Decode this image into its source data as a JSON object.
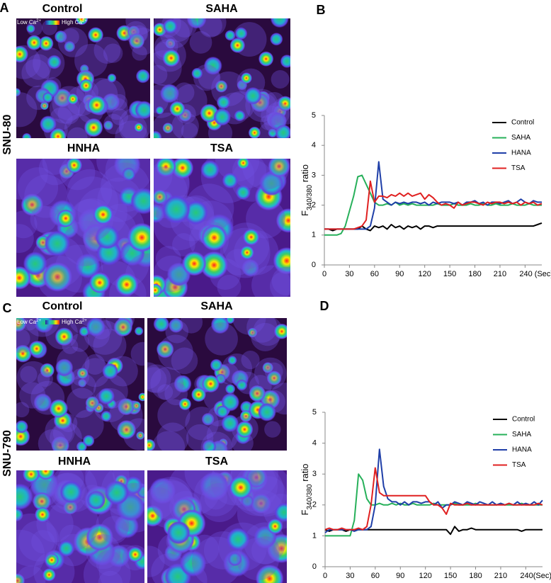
{
  "panels": [
    {
      "letter": "A",
      "cell_line": "SNU-80",
      "images": [
        "Control",
        "SAHA",
        "HNHA",
        "TSA"
      ],
      "scale_low": [
        "Low Ca",
        "2+"
      ],
      "scale_high": [
        "High Ca",
        "2+"
      ]
    },
    {
      "letter": "C",
      "cell_line": "SNU-790",
      "images": [
        "Control",
        "SAHA",
        "HNHA",
        "TSA"
      ],
      "scale_low": [
        "Low Ca",
        "2+"
      ],
      "scale_high": [
        "High Ca",
        "2+"
      ]
    }
  ],
  "chart_data": [
    {
      "type": "line",
      "panel_label": "B",
      "ylabel": [
        "F",
        "340/380",
        " ratio"
      ],
      "xlim": [
        0,
        260
      ],
      "ylim": [
        0,
        5
      ],
      "xticks": [
        0,
        30,
        60,
        90,
        120,
        150,
        180,
        210,
        {
          "value": 240,
          "label": "240 (Sec)"
        }
      ],
      "yticks": [
        0,
        1,
        2,
        3,
        4,
        5
      ],
      "legend": "upper right",
      "x": [
        0,
        5,
        10,
        15,
        20,
        25,
        30,
        35,
        40,
        45,
        50,
        55,
        60,
        65,
        70,
        75,
        80,
        85,
        90,
        95,
        100,
        105,
        110,
        115,
        120,
        125,
        130,
        135,
        140,
        145,
        150,
        155,
        160,
        165,
        170,
        175,
        180,
        185,
        190,
        195,
        200,
        205,
        210,
        215,
        220,
        225,
        230,
        235,
        240,
        245,
        250,
        255,
        260
      ],
      "series": [
        {
          "name": "Control",
          "color": "#000000",
          "values": [
            1.2,
            1.2,
            1.15,
            1.2,
            1.2,
            1.2,
            1.2,
            1.2,
            1.2,
            1.3,
            1.2,
            1.15,
            1.3,
            1.25,
            1.3,
            1.2,
            1.35,
            1.25,
            1.3,
            1.2,
            1.3,
            1.25,
            1.3,
            1.2,
            1.3,
            1.3,
            1.25,
            1.3,
            1.3,
            1.3,
            1.3,
            1.3,
            1.3,
            1.3,
            1.3,
            1.3,
            1.3,
            1.3,
            1.3,
            1.3,
            1.3,
            1.3,
            1.3,
            1.3,
            1.3,
            1.3,
            1.3,
            1.3,
            1.3,
            1.3,
            1.3,
            1.35,
            1.4
          ]
        },
        {
          "name": "SAHA",
          "color": "#27b05a",
          "values": [
            1.0,
            1.0,
            1.0,
            1.0,
            1.05,
            1.3,
            1.8,
            2.3,
            2.95,
            3.0,
            2.7,
            2.4,
            2.1,
            2.0,
            2.0,
            2.05,
            2.0,
            2.1,
            2.0,
            2.05,
            2.0,
            2.05,
            2.0,
            2.0,
            2.0,
            2.0,
            2.0,
            2.05,
            2.0,
            2.0,
            2.0,
            2.05,
            2.0,
            2.0,
            2.0,
            2.05,
            2.0,
            2.0,
            2.05,
            2.0,
            2.0,
            2.05,
            2.0,
            2.0,
            2.0,
            2.05,
            2.0,
            2.0,
            2.0,
            2.05,
            2.0,
            2.0,
            2.0
          ]
        },
        {
          "name": "HANA",
          "color": "#1f3fa8",
          "values": [
            1.2,
            1.2,
            1.2,
            1.2,
            1.2,
            1.2,
            1.2,
            1.2,
            1.2,
            1.2,
            1.2,
            1.3,
            1.9,
            3.45,
            2.2,
            2.1,
            2.0,
            2.1,
            2.05,
            2.1,
            2.05,
            2.1,
            2.1,
            2.05,
            2.1,
            2.0,
            2.1,
            2.05,
            2.1,
            2.1,
            2.1,
            2.05,
            2.1,
            2.0,
            2.1,
            2.1,
            2.15,
            2.05,
            2.1,
            2.0,
            2.1,
            2.1,
            2.05,
            2.1,
            2.15,
            2.05,
            2.1,
            2.2,
            2.1,
            2.05,
            2.15,
            2.1,
            2.1
          ]
        },
        {
          "name": "TSA",
          "color": "#e02020",
          "values": [
            1.2,
            1.2,
            1.2,
            1.2,
            1.2,
            1.2,
            1.2,
            1.2,
            1.25,
            1.3,
            1.5,
            2.8,
            2.1,
            2.3,
            2.3,
            2.25,
            2.35,
            2.3,
            2.4,
            2.3,
            2.4,
            2.3,
            2.35,
            2.4,
            2.2,
            2.35,
            2.25,
            2.1,
            2.0,
            2.05,
            2.0,
            1.9,
            2.1,
            2.0,
            2.05,
            2.1,
            2.1,
            2.05,
            2.0,
            2.1,
            2.05,
            2.1,
            2.1,
            2.05,
            2.1,
            2.05,
            2.1,
            2.0,
            2.1,
            2.05,
            2.1,
            2.0,
            2.05
          ]
        }
      ]
    },
    {
      "type": "line",
      "panel_label": "D",
      "ylabel": [
        "F",
        "340/380",
        " ratio"
      ],
      "xlim": [
        0,
        260
      ],
      "ylim": [
        0,
        5
      ],
      "xticks": [
        0,
        30,
        60,
        90,
        120,
        150,
        180,
        210,
        {
          "value": 240,
          "label": "240(Sec)"
        }
      ],
      "yticks": [
        0,
        1,
        2,
        3,
        4,
        5
      ],
      "legend": "upper right",
      "x": [
        0,
        5,
        10,
        15,
        20,
        25,
        30,
        35,
        40,
        45,
        50,
        55,
        60,
        65,
        70,
        75,
        80,
        85,
        90,
        95,
        100,
        105,
        110,
        115,
        120,
        125,
        130,
        135,
        140,
        145,
        150,
        155,
        160,
        165,
        170,
        175,
        180,
        185,
        190,
        195,
        200,
        205,
        210,
        215,
        220,
        225,
        230,
        235,
        240,
        245,
        250,
        255,
        260
      ],
      "series": [
        {
          "name": "Control",
          "color": "#000000",
          "values": [
            1.2,
            1.15,
            1.2,
            1.2,
            1.2,
            1.15,
            1.2,
            1.2,
            1.2,
            1.2,
            1.2,
            1.2,
            1.2,
            1.2,
            1.2,
            1.2,
            1.2,
            1.2,
            1.2,
            1.2,
            1.2,
            1.2,
            1.2,
            1.2,
            1.2,
            1.2,
            1.2,
            1.2,
            1.2,
            1.2,
            1.05,
            1.3,
            1.15,
            1.2,
            1.2,
            1.25,
            1.2,
            1.2,
            1.2,
            1.2,
            1.2,
            1.2,
            1.2,
            1.2,
            1.2,
            1.2,
            1.2,
            1.15,
            1.2,
            1.2,
            1.2,
            1.2,
            1.2
          ]
        },
        {
          "name": "SAHA",
          "color": "#27b05a",
          "values": [
            1.0,
            1.0,
            1.0,
            1.0,
            1.0,
            1.0,
            1.0,
            1.5,
            3.0,
            2.8,
            2.2,
            2.0,
            2.0,
            2.05,
            2.0,
            2.0,
            2.05,
            2.0,
            2.05,
            2.0,
            2.0,
            2.05,
            2.0,
            2.0,
            2.0,
            2.0,
            2.05,
            2.0,
            2.0,
            2.0,
            2.0,
            2.05,
            2.0,
            2.0,
            2.0,
            2.0,
            2.05,
            2.0,
            2.0,
            2.0,
            2.0,
            2.0,
            2.05,
            2.0,
            2.0,
            2.0,
            2.0,
            2.05,
            2.0,
            2.0,
            2.0,
            2.0,
            2.0
          ]
        },
        {
          "name": "HANA",
          "color": "#1f3fa8",
          "values": [
            1.1,
            1.2,
            1.2,
            1.2,
            1.2,
            1.2,
            1.2,
            1.15,
            1.2,
            1.2,
            1.2,
            1.3,
            2.0,
            3.8,
            2.6,
            2.2,
            2.1,
            2.1,
            2.0,
            2.1,
            2.0,
            2.1,
            2.1,
            2.05,
            2.1,
            2.1,
            2.0,
            2.1,
            1.9,
            2.0,
            2.0,
            2.1,
            2.05,
            2.0,
            2.1,
            2.05,
            2.0,
            2.1,
            2.05,
            2.0,
            2.1,
            2.0,
            2.05,
            2.0,
            2.05,
            2.0,
            2.1,
            2.0,
            2.05,
            2.0,
            2.1,
            2.0,
            2.15
          ]
        },
        {
          "name": "TSA",
          "color": "#e02020",
          "values": [
            1.2,
            1.25,
            1.2,
            1.2,
            1.25,
            1.2,
            1.2,
            1.2,
            1.25,
            1.2,
            1.3,
            2.0,
            3.2,
            2.4,
            2.3,
            2.3,
            2.3,
            2.3,
            2.3,
            2.3,
            2.3,
            2.3,
            2.3,
            2.3,
            2.3,
            2.1,
            2.0,
            2.0,
            1.9,
            1.7,
            2.05,
            2.0,
            2.0,
            2.0,
            2.05,
            2.0,
            2.0,
            2.0,
            2.0,
            2.0,
            2.0,
            2.0,
            2.0,
            2.0,
            2.05,
            2.0,
            2.0,
            2.0,
            2.0,
            2.0,
            2.0,
            2.05,
            2.0
          ]
        }
      ]
    }
  ]
}
